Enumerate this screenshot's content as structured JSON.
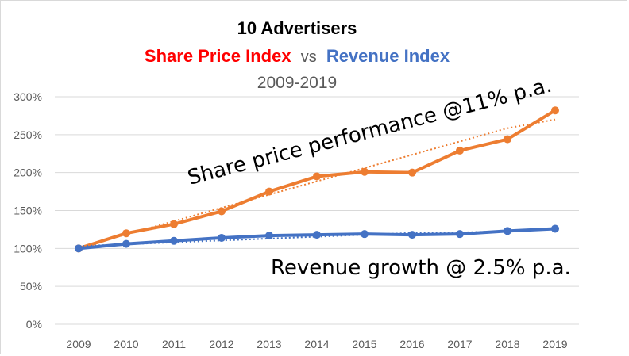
{
  "chart_data": {
    "type": "line",
    "title": "10 Advertisers",
    "subtitle": {
      "share_label": "Share Price Index",
      "vs": "vs",
      "revenue_label": "Revenue Index",
      "years": "2009-2019"
    },
    "x": [
      "2009",
      "2010",
      "2011",
      "2012",
      "2013",
      "2014",
      "2015",
      "2016",
      "2017",
      "2018",
      "2019"
    ],
    "ylim": [
      0,
      300
    ],
    "yticks": [
      0,
      50,
      100,
      150,
      200,
      250,
      300
    ],
    "ytick_labels": [
      "0%",
      "50%",
      "100%",
      "150%",
      "200%",
      "250%",
      "300%"
    ],
    "grid": true,
    "legend": "none",
    "series": [
      {
        "name": "Share Price Index",
        "values": [
          100,
          120,
          132,
          149,
          175,
          195,
          201,
          200,
          229,
          244,
          282
        ],
        "trendline": [
          101,
          118.5,
          136,
          153.5,
          171,
          188.5,
          206,
          223.5,
          241,
          258.5,
          270
        ],
        "color": "#ed7d31"
      },
      {
        "name": "Revenue Index",
        "values": [
          100,
          106,
          110,
          114,
          117,
          118,
          119,
          118,
          119,
          123,
          126
        ],
        "trendline": [
          103,
          105.5,
          108,
          110.5,
          113,
          115.5,
          118,
          120.5,
          121,
          123,
          125
        ],
        "color": "#4472c4"
      }
    ],
    "annotations": [
      {
        "text": "Share price performance @11% p.a.",
        "anchor_year": "2013"
      },
      {
        "text": "Revenue growth @ 2.5% p.a.",
        "anchor_year": "2013"
      }
    ]
  },
  "colors": {
    "share_title": "#ff0000",
    "revenue_title": "#4472c4",
    "grid": "#d9d9d9"
  }
}
